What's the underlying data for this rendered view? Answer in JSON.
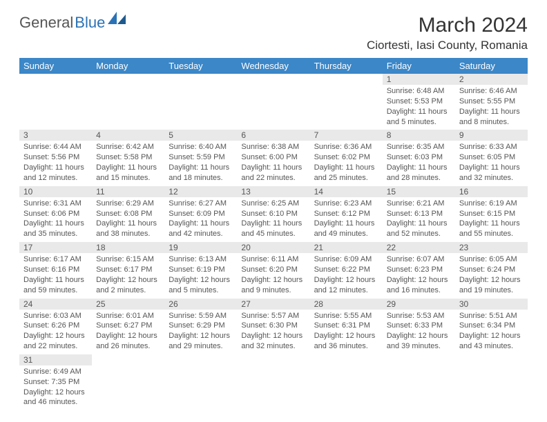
{
  "logo": {
    "part1": "General",
    "part2": "Blue"
  },
  "title": "March 2024",
  "location": "Ciortesti, Iasi County, Romania",
  "day_headers": [
    "Sunday",
    "Monday",
    "Tuesday",
    "Wednesday",
    "Thursday",
    "Friday",
    "Saturday"
  ],
  "colors": {
    "header_bg": "#3b87c8",
    "daynum_bg": "#e9e9e9",
    "text": "#555555"
  },
  "weeks": [
    [
      {
        "n": "",
        "sunrise": "",
        "sunset": "",
        "daylight": ""
      },
      {
        "n": "",
        "sunrise": "",
        "sunset": "",
        "daylight": ""
      },
      {
        "n": "",
        "sunrise": "",
        "sunset": "",
        "daylight": ""
      },
      {
        "n": "",
        "sunrise": "",
        "sunset": "",
        "daylight": ""
      },
      {
        "n": "",
        "sunrise": "",
        "sunset": "",
        "daylight": ""
      },
      {
        "n": "1",
        "sunrise": "Sunrise: 6:48 AM",
        "sunset": "Sunset: 5:53 PM",
        "daylight": "Daylight: 11 hours and 5 minutes."
      },
      {
        "n": "2",
        "sunrise": "Sunrise: 6:46 AM",
        "sunset": "Sunset: 5:55 PM",
        "daylight": "Daylight: 11 hours and 8 minutes."
      }
    ],
    [
      {
        "n": "3",
        "sunrise": "Sunrise: 6:44 AM",
        "sunset": "Sunset: 5:56 PM",
        "daylight": "Daylight: 11 hours and 12 minutes."
      },
      {
        "n": "4",
        "sunrise": "Sunrise: 6:42 AM",
        "sunset": "Sunset: 5:58 PM",
        "daylight": "Daylight: 11 hours and 15 minutes."
      },
      {
        "n": "5",
        "sunrise": "Sunrise: 6:40 AM",
        "sunset": "Sunset: 5:59 PM",
        "daylight": "Daylight: 11 hours and 18 minutes."
      },
      {
        "n": "6",
        "sunrise": "Sunrise: 6:38 AM",
        "sunset": "Sunset: 6:00 PM",
        "daylight": "Daylight: 11 hours and 22 minutes."
      },
      {
        "n": "7",
        "sunrise": "Sunrise: 6:36 AM",
        "sunset": "Sunset: 6:02 PM",
        "daylight": "Daylight: 11 hours and 25 minutes."
      },
      {
        "n": "8",
        "sunrise": "Sunrise: 6:35 AM",
        "sunset": "Sunset: 6:03 PM",
        "daylight": "Daylight: 11 hours and 28 minutes."
      },
      {
        "n": "9",
        "sunrise": "Sunrise: 6:33 AM",
        "sunset": "Sunset: 6:05 PM",
        "daylight": "Daylight: 11 hours and 32 minutes."
      }
    ],
    [
      {
        "n": "10",
        "sunrise": "Sunrise: 6:31 AM",
        "sunset": "Sunset: 6:06 PM",
        "daylight": "Daylight: 11 hours and 35 minutes."
      },
      {
        "n": "11",
        "sunrise": "Sunrise: 6:29 AM",
        "sunset": "Sunset: 6:08 PM",
        "daylight": "Daylight: 11 hours and 38 minutes."
      },
      {
        "n": "12",
        "sunrise": "Sunrise: 6:27 AM",
        "sunset": "Sunset: 6:09 PM",
        "daylight": "Daylight: 11 hours and 42 minutes."
      },
      {
        "n": "13",
        "sunrise": "Sunrise: 6:25 AM",
        "sunset": "Sunset: 6:10 PM",
        "daylight": "Daylight: 11 hours and 45 minutes."
      },
      {
        "n": "14",
        "sunrise": "Sunrise: 6:23 AM",
        "sunset": "Sunset: 6:12 PM",
        "daylight": "Daylight: 11 hours and 49 minutes."
      },
      {
        "n": "15",
        "sunrise": "Sunrise: 6:21 AM",
        "sunset": "Sunset: 6:13 PM",
        "daylight": "Daylight: 11 hours and 52 minutes."
      },
      {
        "n": "16",
        "sunrise": "Sunrise: 6:19 AM",
        "sunset": "Sunset: 6:15 PM",
        "daylight": "Daylight: 11 hours and 55 minutes."
      }
    ],
    [
      {
        "n": "17",
        "sunrise": "Sunrise: 6:17 AM",
        "sunset": "Sunset: 6:16 PM",
        "daylight": "Daylight: 11 hours and 59 minutes."
      },
      {
        "n": "18",
        "sunrise": "Sunrise: 6:15 AM",
        "sunset": "Sunset: 6:17 PM",
        "daylight": "Daylight: 12 hours and 2 minutes."
      },
      {
        "n": "19",
        "sunrise": "Sunrise: 6:13 AM",
        "sunset": "Sunset: 6:19 PM",
        "daylight": "Daylight: 12 hours and 5 minutes."
      },
      {
        "n": "20",
        "sunrise": "Sunrise: 6:11 AM",
        "sunset": "Sunset: 6:20 PM",
        "daylight": "Daylight: 12 hours and 9 minutes."
      },
      {
        "n": "21",
        "sunrise": "Sunrise: 6:09 AM",
        "sunset": "Sunset: 6:22 PM",
        "daylight": "Daylight: 12 hours and 12 minutes."
      },
      {
        "n": "22",
        "sunrise": "Sunrise: 6:07 AM",
        "sunset": "Sunset: 6:23 PM",
        "daylight": "Daylight: 12 hours and 16 minutes."
      },
      {
        "n": "23",
        "sunrise": "Sunrise: 6:05 AM",
        "sunset": "Sunset: 6:24 PM",
        "daylight": "Daylight: 12 hours and 19 minutes."
      }
    ],
    [
      {
        "n": "24",
        "sunrise": "Sunrise: 6:03 AM",
        "sunset": "Sunset: 6:26 PM",
        "daylight": "Daylight: 12 hours and 22 minutes."
      },
      {
        "n": "25",
        "sunrise": "Sunrise: 6:01 AM",
        "sunset": "Sunset: 6:27 PM",
        "daylight": "Daylight: 12 hours and 26 minutes."
      },
      {
        "n": "26",
        "sunrise": "Sunrise: 5:59 AM",
        "sunset": "Sunset: 6:29 PM",
        "daylight": "Daylight: 12 hours and 29 minutes."
      },
      {
        "n": "27",
        "sunrise": "Sunrise: 5:57 AM",
        "sunset": "Sunset: 6:30 PM",
        "daylight": "Daylight: 12 hours and 32 minutes."
      },
      {
        "n": "28",
        "sunrise": "Sunrise: 5:55 AM",
        "sunset": "Sunset: 6:31 PM",
        "daylight": "Daylight: 12 hours and 36 minutes."
      },
      {
        "n": "29",
        "sunrise": "Sunrise: 5:53 AM",
        "sunset": "Sunset: 6:33 PM",
        "daylight": "Daylight: 12 hours and 39 minutes."
      },
      {
        "n": "30",
        "sunrise": "Sunrise: 5:51 AM",
        "sunset": "Sunset: 6:34 PM",
        "daylight": "Daylight: 12 hours and 43 minutes."
      }
    ],
    [
      {
        "n": "31",
        "sunrise": "Sunrise: 6:49 AM",
        "sunset": "Sunset: 7:35 PM",
        "daylight": "Daylight: 12 hours and 46 minutes."
      },
      {
        "n": "",
        "sunrise": "",
        "sunset": "",
        "daylight": ""
      },
      {
        "n": "",
        "sunrise": "",
        "sunset": "",
        "daylight": ""
      },
      {
        "n": "",
        "sunrise": "",
        "sunset": "",
        "daylight": ""
      },
      {
        "n": "",
        "sunrise": "",
        "sunset": "",
        "daylight": ""
      },
      {
        "n": "",
        "sunrise": "",
        "sunset": "",
        "daylight": ""
      },
      {
        "n": "",
        "sunrise": "",
        "sunset": "",
        "daylight": ""
      }
    ]
  ]
}
